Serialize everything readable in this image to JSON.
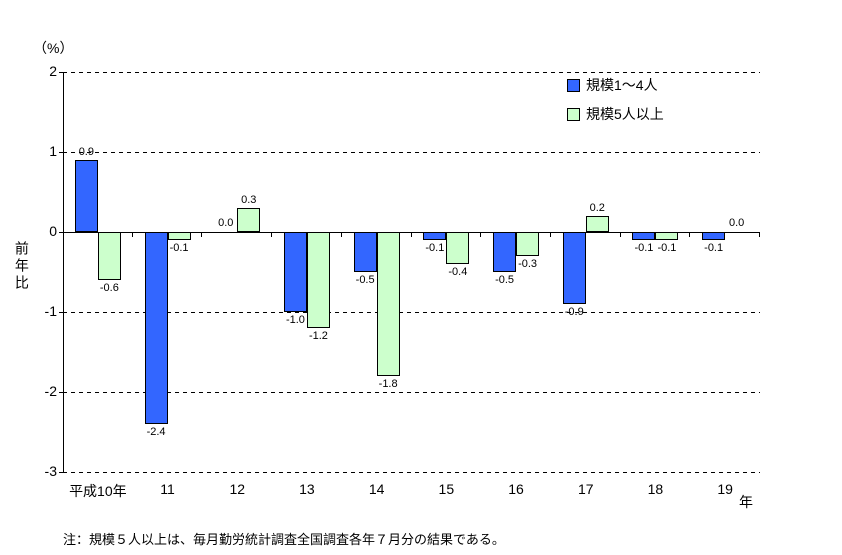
{
  "chart": {
    "unit_label": "（%）",
    "y_axis_title": "前年比",
    "x_axis_unit": "年",
    "note": "注：規模５人以上は、毎月勤労統計調査全国調査各年７月分の結果である。"
  },
  "chart_data": {
    "type": "bar",
    "title": "",
    "categories": [
      "平成10年",
      "11",
      "12",
      "13",
      "14",
      "15",
      "16",
      "17",
      "18",
      "19"
    ],
    "series": [
      {
        "name": "規模1～4人",
        "color": "#3366FF",
        "values": [
          0.9,
          -2.4,
          0.0,
          -1.0,
          -0.5,
          -0.1,
          -0.5,
          -0.9,
          -0.1,
          -0.1
        ]
      },
      {
        "name": "規模5人以上",
        "color": "#CCFFCC",
        "values": [
          -0.6,
          -0.1,
          0.3,
          -1.2,
          -1.8,
          -0.4,
          -0.3,
          0.2,
          -0.1,
          0.0
        ]
      }
    ],
    "ylabel": "前年比",
    "xlabel": "年",
    "ylim": [
      -3,
      2
    ],
    "yticks": [
      2,
      1,
      0,
      -1,
      -2,
      -3
    ],
    "grid": "dashed-horizontal",
    "legend_position": "top-right-inside",
    "bar_border_color": "#000000",
    "value_label_format": "one-decimal"
  }
}
